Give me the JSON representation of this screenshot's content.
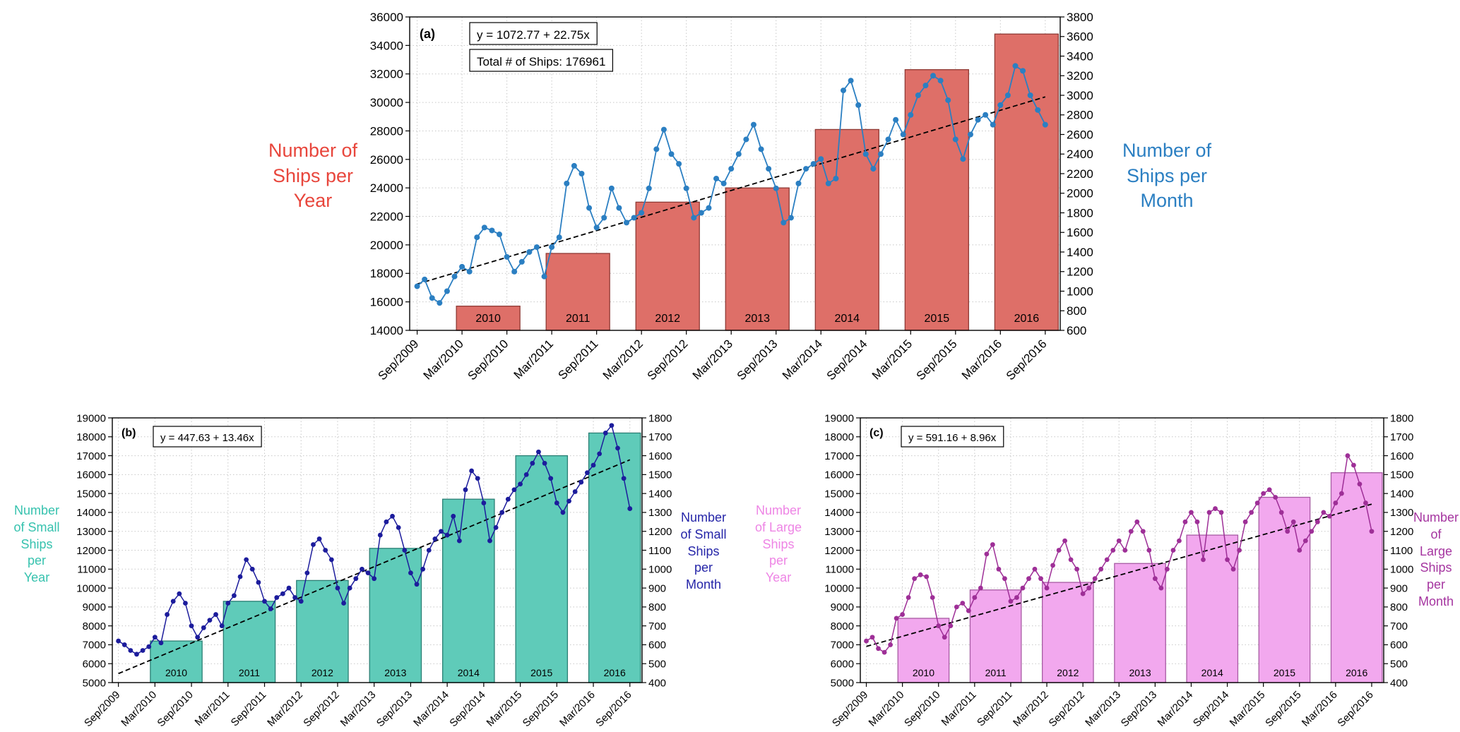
{
  "chart_data": [
    {
      "id": "a",
      "type": "bar",
      "panel_label": "(a)",
      "equation": "y = 1072.77 + 22.75x",
      "total_ships_label": "Total # of Ships: 176961",
      "bar_axis": {
        "label": "Number of\nShips per\nYear",
        "color": "#e8463c",
        "min": 14000,
        "max": 36000,
        "step": 2000
      },
      "line_axis": {
        "label": "Number of\nShips per\nMonth",
        "color": "#2b7fc2",
        "min": 600,
        "max": 3800,
        "step": 200
      },
      "x_tick_labels": [
        "Sep/2009",
        "Mar/2010",
        "Sep/2010",
        "Mar/2011",
        "Sep/2011",
        "Mar/2012",
        "Sep/2012",
        "Mar/2013",
        "Sep/2013",
        "Mar/2014",
        "Sep/2014",
        "Mar/2015",
        "Sep/2015",
        "Mar/2016",
        "Sep/2016"
      ],
      "bars": {
        "fill": "#de6f68",
        "edge": "#8f3a35",
        "width": 8.5,
        "years": [
          "2010",
          "2011",
          "2012",
          "2013",
          "2014",
          "2015",
          "2016"
        ],
        "centers": [
          9.5,
          21.5,
          33.5,
          45.5,
          57.5,
          69.5,
          81.5
        ],
        "values": [
          15700,
          19400,
          23000,
          24000,
          28100,
          32300,
          34800
        ]
      },
      "line": {
        "color": "#2b7fc2",
        "values": [
          1050,
          1120,
          930,
          880,
          1000,
          1150,
          1250,
          1200,
          1550,
          1650,
          1620,
          1580,
          1350,
          1200,
          1300,
          1400,
          1450,
          1150,
          1450,
          1550,
          2100,
          2280,
          2200,
          1850,
          1650,
          1750,
          2050,
          1850,
          1700,
          1750,
          1800,
          2050,
          2450,
          2650,
          2400,
          2300,
          2050,
          1750,
          1800,
          1850,
          2150,
          2100,
          2250,
          2400,
          2550,
          2700,
          2450,
          2250,
          2050,
          1700,
          1750,
          2100,
          2250,
          2300,
          2350,
          2100,
          2150,
          3050,
          3150,
          2900,
          2400,
          2250,
          2400,
          2550,
          2750,
          2600,
          2800,
          3000,
          3100,
          3200,
          3150,
          2950,
          2550,
          2350,
          2600,
          2750,
          2800,
          2700,
          2900,
          3000,
          3300,
          3250,
          3000,
          2850,
          2700
        ]
      },
      "trend": {
        "intercept": 1072.77,
        "slope": 22.75
      }
    },
    {
      "id": "b",
      "type": "bar",
      "panel_label": "(b)",
      "equation": "y = 447.63 + 13.46x",
      "bar_axis": {
        "label": "Number\nof Small\nShips\nper\nYear",
        "color": "#36c2ae",
        "min": 5000,
        "max": 19000,
        "step": 1000
      },
      "line_axis": {
        "label": "Number\nof Small\nShips\nper\nMonth",
        "color": "#2525a8",
        "min": 400,
        "max": 1800,
        "step": 100
      },
      "x_tick_labels": [
        "Sep/2009",
        "Mar/2010",
        "Sep/2010",
        "Mar/2011",
        "Sep/2011",
        "Mar/2012",
        "Sep/2012",
        "Mar/2013",
        "Sep/2013",
        "Mar/2014",
        "Sep/2014",
        "Mar/2015",
        "Sep/2015",
        "Mar/2016",
        "Sep/2016"
      ],
      "bars": {
        "fill": "#5fcbb9",
        "edge": "#2b7f74",
        "width": 8.5,
        "years": [
          "2010",
          "2011",
          "2012",
          "2013",
          "2014",
          "2015",
          "2016"
        ],
        "centers": [
          9.5,
          21.5,
          33.5,
          45.5,
          57.5,
          69.5,
          81.5
        ],
        "values": [
          7200,
          9300,
          10400,
          12100,
          14700,
          17000,
          18200
        ]
      },
      "line": {
        "color": "#1c1c9c",
        "values": [
          620,
          600,
          570,
          550,
          570,
          590,
          640,
          610,
          760,
          830,
          870,
          820,
          700,
          640,
          690,
          730,
          760,
          700,
          820,
          860,
          960,
          1050,
          1000,
          930,
          830,
          790,
          850,
          870,
          900,
          850,
          830,
          980,
          1130,
          1160,
          1100,
          1050,
          900,
          820,
          900,
          950,
          1000,
          980,
          950,
          1180,
          1250,
          1280,
          1220,
          1100,
          980,
          920,
          1000,
          1100,
          1160,
          1200,
          1180,
          1280,
          1150,
          1420,
          1520,
          1480,
          1350,
          1150,
          1220,
          1300,
          1370,
          1420,
          1450,
          1500,
          1560,
          1620,
          1560,
          1480,
          1350,
          1300,
          1360,
          1410,
          1460,
          1510,
          1550,
          1610,
          1720,
          1760,
          1640,
          1480,
          1320
        ]
      },
      "trend": {
        "intercept": 447.63,
        "slope": 13.46
      }
    },
    {
      "id": "c",
      "type": "bar",
      "panel_label": "(c)",
      "equation": "y = 591.16 + 8.96x",
      "bar_axis": {
        "label": "Number\nof Large\nShips\nper\nYear",
        "color": "#ee85e5",
        "min": 5000,
        "max": 19000,
        "step": 1000
      },
      "line_axis": {
        "label": "Number\nof Large\nShips\nper\nMonth",
        "color": "#a535a0",
        "min": 400,
        "max": 1800,
        "step": 100
      },
      "x_tick_labels": [
        "Sep/2009",
        "Mar/2010",
        "Sep/2010",
        "Mar/2011",
        "Sep/2011",
        "Mar/2012",
        "Sep/2012",
        "Mar/2013",
        "Sep/2013",
        "Mar/2014",
        "Sep/2014",
        "Mar/2015",
        "Sep/2015",
        "Mar/2016",
        "Sep/2016"
      ],
      "bars": {
        "fill": "#f2a8ee",
        "edge": "#a75ba3",
        "width": 8.5,
        "years": [
          "2010",
          "2011",
          "2012",
          "2013",
          "2014",
          "2015",
          "2016"
        ],
        "centers": [
          9.5,
          21.5,
          33.5,
          45.5,
          57.5,
          69.5,
          81.5
        ],
        "values": [
          8400,
          9900,
          10300,
          11300,
          12800,
          14800,
          16100
        ]
      },
      "line": {
        "color": "#9e2f97",
        "values": [
          620,
          640,
          580,
          560,
          600,
          740,
          760,
          850,
          950,
          970,
          960,
          850,
          700,
          640,
          700,
          800,
          820,
          780,
          850,
          900,
          1080,
          1130,
          1000,
          950,
          830,
          850,
          900,
          950,
          1000,
          950,
          900,
          1020,
          1100,
          1150,
          1050,
          1000,
          870,
          900,
          950,
          1000,
          1050,
          1100,
          1150,
          1100,
          1200,
          1250,
          1200,
          1100,
          950,
          900,
          1000,
          1100,
          1150,
          1250,
          1300,
          1250,
          1050,
          1300,
          1320,
          1300,
          1050,
          1000,
          1100,
          1250,
          1300,
          1350,
          1400,
          1420,
          1380,
          1300,
          1200,
          1250,
          1100,
          1150,
          1200,
          1250,
          1300,
          1280,
          1350,
          1400,
          1600,
          1550,
          1450,
          1350,
          1200
        ]
      },
      "trend": {
        "intercept": 591.16,
        "slope": 8.96
      }
    }
  ]
}
